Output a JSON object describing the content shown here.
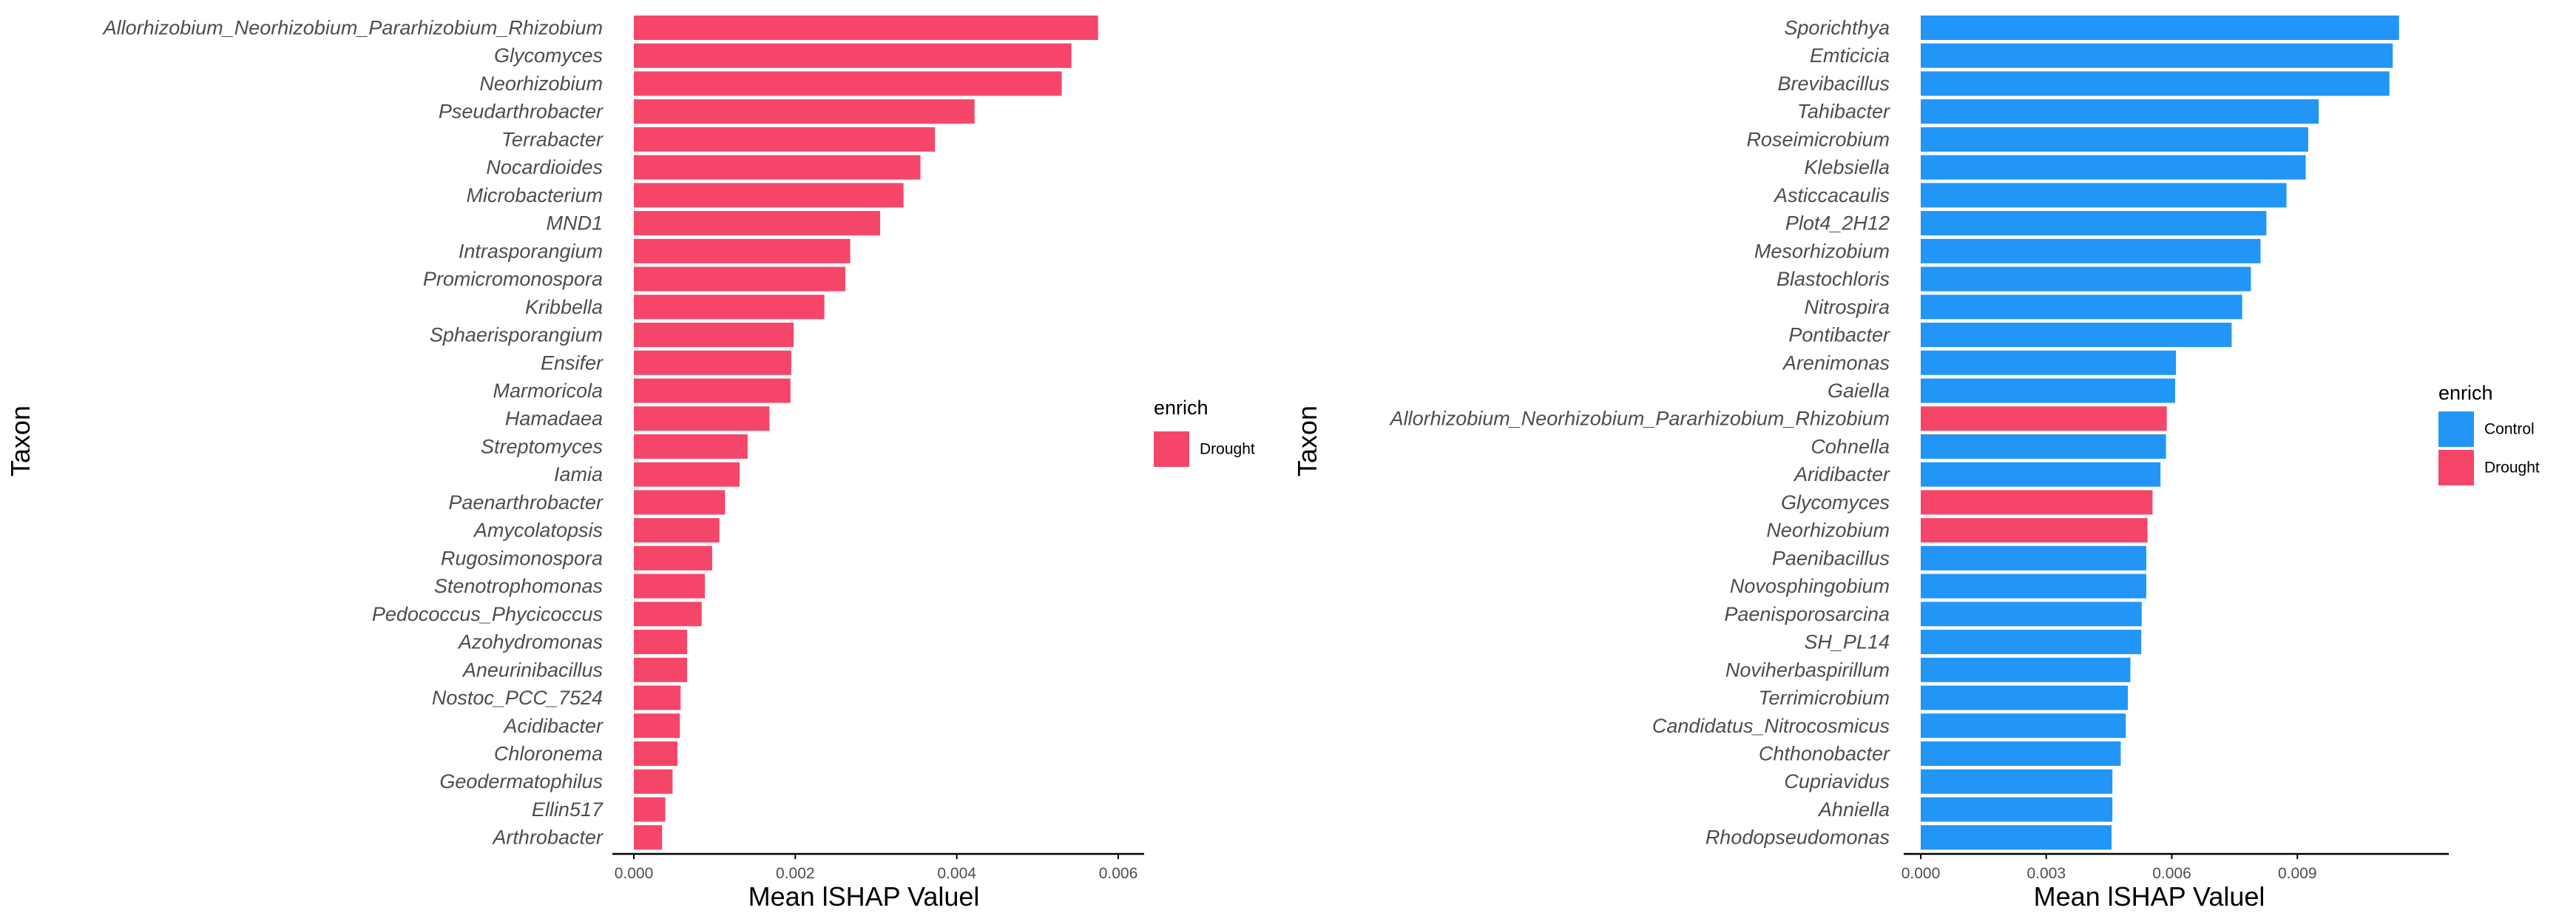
{
  "colors": {
    "Drought": "#F5466A",
    "Control": "#2196F7"
  },
  "chart_data": [
    {
      "type": "bar",
      "orientation": "horizontal",
      "xlabel": "Mean lSHAP Valuel",
      "ylabel": "Taxon",
      "xlim": [
        0,
        0.006
      ],
      "xticks": [
        "0.000",
        "0.002",
        "0.004",
        "0.006"
      ],
      "legend": {
        "title": "enrich",
        "entries": [
          "Drought"
        ],
        "position": "right"
      },
      "grid": false,
      "bars": [
        {
          "taxon": "Allorhizobium_Neorhizobium_Pararhizobium_Rhizobium",
          "value": 0.00575,
          "enrich": "Drought"
        },
        {
          "taxon": "Glycomyces",
          "value": 0.00542,
          "enrich": "Drought"
        },
        {
          "taxon": "Neorhizobium",
          "value": 0.0053,
          "enrich": "Drought"
        },
        {
          "taxon": "Pseudarthrobacter",
          "value": 0.00422,
          "enrich": "Drought"
        },
        {
          "taxon": "Terrabacter",
          "value": 0.00373,
          "enrich": "Drought"
        },
        {
          "taxon": "Nocardioides",
          "value": 0.00355,
          "enrich": "Drought"
        },
        {
          "taxon": "Microbacterium",
          "value": 0.00334,
          "enrich": "Drought"
        },
        {
          "taxon": "MND1",
          "value": 0.00305,
          "enrich": "Drought"
        },
        {
          "taxon": "Intrasporangium",
          "value": 0.00268,
          "enrich": "Drought"
        },
        {
          "taxon": "Promicromonospora",
          "value": 0.00262,
          "enrich": "Drought"
        },
        {
          "taxon": "Kribbella",
          "value": 0.00236,
          "enrich": "Drought"
        },
        {
          "taxon": "Sphaerisporangium",
          "value": 0.00198,
          "enrich": "Drought"
        },
        {
          "taxon": "Ensifer",
          "value": 0.00195,
          "enrich": "Drought"
        },
        {
          "taxon": "Marmoricola",
          "value": 0.00194,
          "enrich": "Drought"
        },
        {
          "taxon": "Hamadaea",
          "value": 0.00168,
          "enrich": "Drought"
        },
        {
          "taxon": "Streptomyces",
          "value": 0.00141,
          "enrich": "Drought"
        },
        {
          "taxon": "Iamia",
          "value": 0.00131,
          "enrich": "Drought"
        },
        {
          "taxon": "Paenarthrobacter",
          "value": 0.00113,
          "enrich": "Drought"
        },
        {
          "taxon": "Amycolatopsis",
          "value": 0.00106,
          "enrich": "Drought"
        },
        {
          "taxon": "Rugosimonospora",
          "value": 0.00097,
          "enrich": "Drought"
        },
        {
          "taxon": "Stenotrophomonas",
          "value": 0.00088,
          "enrich": "Drought"
        },
        {
          "taxon": "Pedococcus_Phycicoccus",
          "value": 0.00084,
          "enrich": "Drought"
        },
        {
          "taxon": "Azohydromonas",
          "value": 0.00066,
          "enrich": "Drought"
        },
        {
          "taxon": "Aneurinibacillus",
          "value": 0.00066,
          "enrich": "Drought"
        },
        {
          "taxon": "Nostoc_PCC_7524",
          "value": 0.00058,
          "enrich": "Drought"
        },
        {
          "taxon": "Acidibacter",
          "value": 0.00057,
          "enrich": "Drought"
        },
        {
          "taxon": "Chloronema",
          "value": 0.00054,
          "enrich": "Drought"
        },
        {
          "taxon": "Geodermatophilus",
          "value": 0.00048,
          "enrich": "Drought"
        },
        {
          "taxon": "Ellin517",
          "value": 0.00039,
          "enrich": "Drought"
        },
        {
          "taxon": "Arthrobacter",
          "value": 0.00035,
          "enrich": "Drought"
        }
      ]
    },
    {
      "type": "bar",
      "orientation": "horizontal",
      "xlabel": "Mean lSHAP Valuel",
      "ylabel": "Taxon",
      "xlim": [
        0,
        0.012
      ],
      "xticks": [
        "0.000",
        "0.003",
        "0.006",
        "0.009"
      ],
      "legend": {
        "title": "enrich",
        "entries": [
          "Control",
          "Drought"
        ],
        "position": "right"
      },
      "grid": false,
      "bars": [
        {
          "taxon": "Sporichthya",
          "value": 0.01143,
          "enrich": "Control"
        },
        {
          "taxon": "Emticicia",
          "value": 0.01128,
          "enrich": "Control"
        },
        {
          "taxon": "Brevibacillus",
          "value": 0.0112,
          "enrich": "Control"
        },
        {
          "taxon": "Tahibacter",
          "value": 0.00951,
          "enrich": "Control"
        },
        {
          "taxon": "Roseimicrobium",
          "value": 0.00926,
          "enrich": "Control"
        },
        {
          "taxon": "Klebsiella",
          "value": 0.0092,
          "enrich": "Control"
        },
        {
          "taxon": "Asticcacaulis",
          "value": 0.00874,
          "enrich": "Control"
        },
        {
          "taxon": "Plot4_2H12",
          "value": 0.00826,
          "enrich": "Control"
        },
        {
          "taxon": "Mesorhizobium",
          "value": 0.00812,
          "enrich": "Control"
        },
        {
          "taxon": "Blastochloris",
          "value": 0.00789,
          "enrich": "Control"
        },
        {
          "taxon": "Nitrospira",
          "value": 0.00768,
          "enrich": "Control"
        },
        {
          "taxon": "Pontibacter",
          "value": 0.00743,
          "enrich": "Control"
        },
        {
          "taxon": "Arenimonas",
          "value": 0.0061,
          "enrich": "Control"
        },
        {
          "taxon": "Gaiella",
          "value": 0.00608,
          "enrich": "Control"
        },
        {
          "taxon": "Allorhizobium_Neorhizobium_Pararhizobium_Rhizobium",
          "value": 0.00588,
          "enrich": "Drought"
        },
        {
          "taxon": "Cohnella",
          "value": 0.00586,
          "enrich": "Control"
        },
        {
          "taxon": "Aridibacter",
          "value": 0.00573,
          "enrich": "Control"
        },
        {
          "taxon": "Glycomyces",
          "value": 0.00554,
          "enrich": "Drought"
        },
        {
          "taxon": "Neorhizobium",
          "value": 0.00542,
          "enrich": "Drought"
        },
        {
          "taxon": "Paenibacillus",
          "value": 0.00539,
          "enrich": "Control"
        },
        {
          "taxon": "Novosphingobium",
          "value": 0.00539,
          "enrich": "Control"
        },
        {
          "taxon": "Paenisporosarcina",
          "value": 0.00528,
          "enrich": "Control"
        },
        {
          "taxon": "SH_PL14",
          "value": 0.00527,
          "enrich": "Control"
        },
        {
          "taxon": "Noviherbaspirillum",
          "value": 0.00501,
          "enrich": "Control"
        },
        {
          "taxon": "Terrimicrobium",
          "value": 0.00495,
          "enrich": "Control"
        },
        {
          "taxon": "Candidatus_Nitrocosmicus",
          "value": 0.0049,
          "enrich": "Control"
        },
        {
          "taxon": "Chthonobacter",
          "value": 0.00478,
          "enrich": "Control"
        },
        {
          "taxon": "Cupriavidus",
          "value": 0.00458,
          "enrich": "Control"
        },
        {
          "taxon": "Ahniella",
          "value": 0.00458,
          "enrich": "Control"
        },
        {
          "taxon": "Rhodopseudomonas",
          "value": 0.00456,
          "enrich": "Control"
        }
      ]
    }
  ]
}
